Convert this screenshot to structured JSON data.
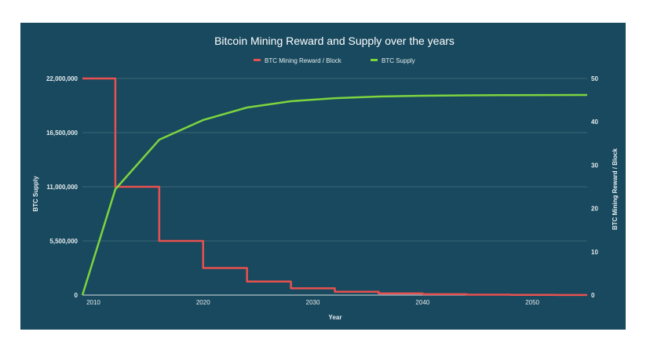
{
  "chart_data": {
    "type": "line",
    "title": "Bitcoin Mining Reward and Supply over the years",
    "xlabel": "Year",
    "ylabel_left": "BTC Supply",
    "ylabel_right": "BTC Mining Reward / Block",
    "xlim": [
      2009,
      2055
    ],
    "ylim_left": [
      0,
      22000000
    ],
    "ylim_right": [
      0,
      50
    ],
    "x_ticks": [
      "2010",
      "2020",
      "2030",
      "2040",
      "2050"
    ],
    "y_ticks_left": [
      "0",
      "5,500,000",
      "11,000,000",
      "16,500,000",
      "22,000,000"
    ],
    "y_ticks_right": [
      "0",
      "10",
      "20",
      "30",
      "40",
      "50"
    ],
    "grid": true,
    "legend": "top",
    "background": "#18495e",
    "series": [
      {
        "name": "BTC Mining Reward / Block",
        "axis": "right",
        "step": true,
        "color": "#e8514f",
        "x": [
          2009,
          2012,
          2016,
          2020,
          2024,
          2028,
          2032,
          2036,
          2040,
          2044,
          2048,
          2052,
          2055
        ],
        "values": [
          50,
          25,
          12.5,
          6.25,
          3.125,
          1.5625,
          0.78125,
          0.390625,
          0.1953125,
          0.09765625,
          0.048828125,
          0.0244140625,
          0.0244140625
        ]
      },
      {
        "name": "BTC Supply",
        "axis": "left",
        "color": "#7ed43f",
        "x": [
          2009,
          2012,
          2016,
          2020,
          2024,
          2028,
          2032,
          2036,
          2040,
          2044,
          2048,
          2055
        ],
        "values": [
          0,
          10750000,
          15780000,
          17780000,
          19050000,
          19690000,
          20000000,
          20170000,
          20250000,
          20290000,
          20310000,
          20330000
        ]
      }
    ]
  }
}
